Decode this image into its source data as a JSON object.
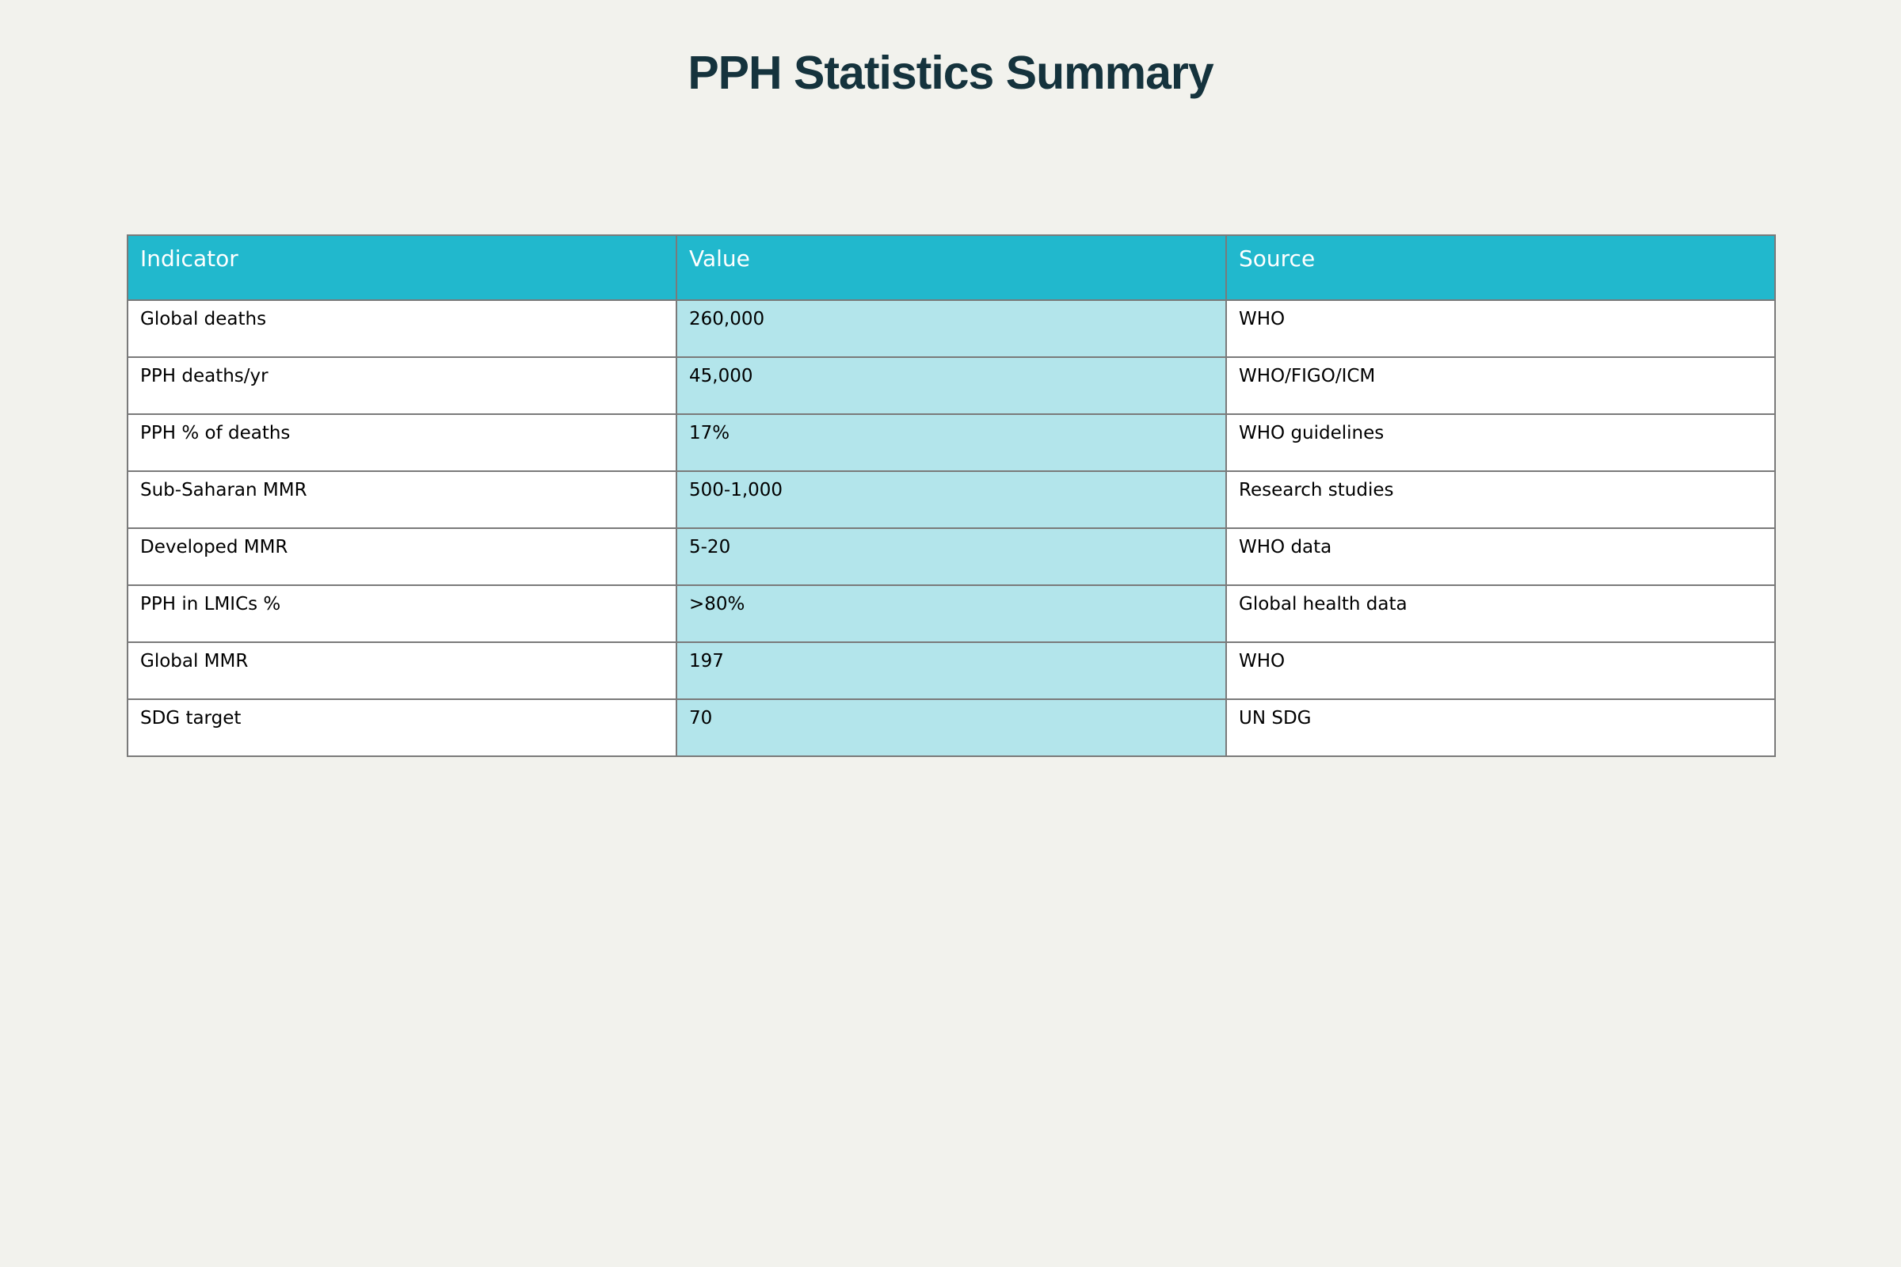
{
  "title": "PPH Statistics Summary",
  "colors": {
    "background": "#f2f2ed",
    "title": "#15333d",
    "header_background": "#21b8cd",
    "header_text": "#ffffff",
    "value_column_background": "#b3e5eb",
    "cell_background": "#ffffff",
    "border": "#7a7a7a"
  },
  "chart_data": {
    "type": "table",
    "title": "PPH Statistics Summary",
    "columns": [
      "Indicator",
      "Value",
      "Source"
    ],
    "rows": [
      [
        "Global deaths",
        "260,000",
        "WHO"
      ],
      [
        "PPH deaths/yr",
        "45,000",
        "WHO/FIGO/ICM"
      ],
      [
        "PPH % of deaths",
        "17%",
        "WHO guidelines"
      ],
      [
        "Sub-Saharan MMR",
        "500-1,000",
        "Research studies"
      ],
      [
        "Developed MMR",
        "5-20",
        "WHO data"
      ],
      [
        "PPH in LMICs %",
        ">80%",
        "Global health data"
      ],
      [
        "Global MMR",
        "197",
        "WHO"
      ],
      [
        "SDG target",
        "70",
        "UN SDG"
      ]
    ]
  }
}
